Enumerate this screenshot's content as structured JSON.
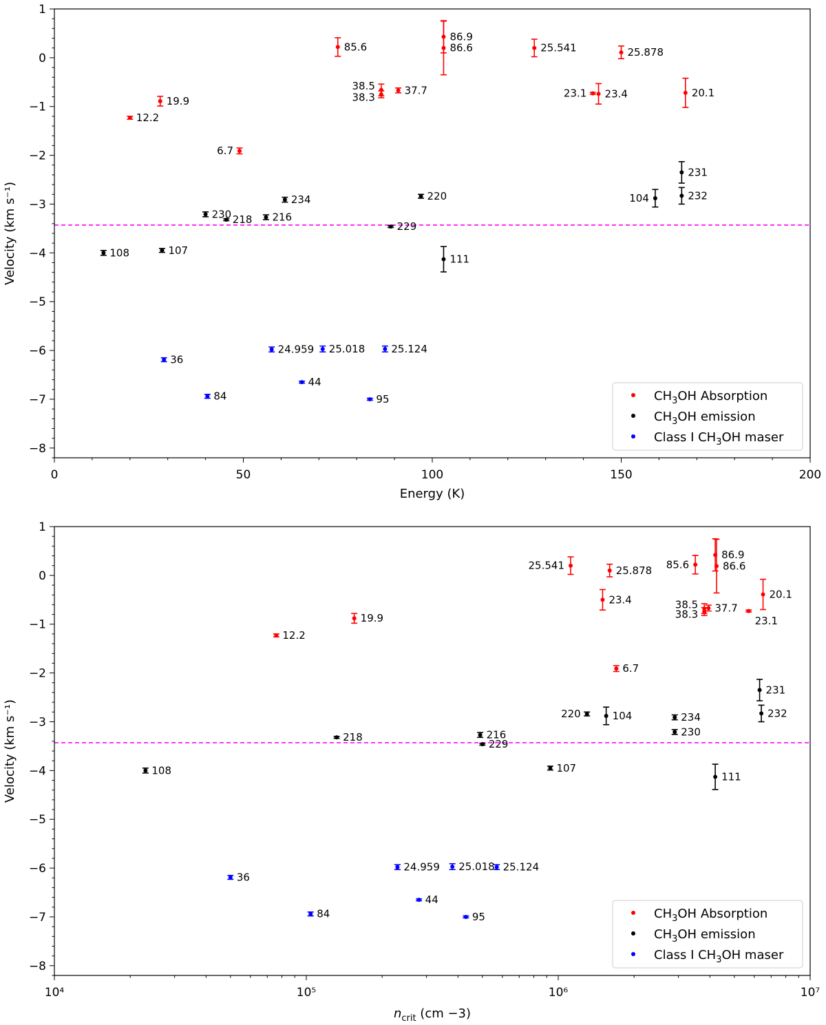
{
  "chart_data": [
    {
      "type": "scatter",
      "xscale": "linear",
      "xlabel": "Energy (K)",
      "ylabel": "Velocity (km s⁻¹)",
      "xlim": [
        0,
        200
      ],
      "ylim": [
        -8.2,
        1
      ],
      "xticks": [
        0,
        50,
        100,
        150,
        200
      ],
      "xtick_labels": [
        "0",
        "50",
        "100",
        "150",
        "200"
      ],
      "yticks": [
        -8,
        -7,
        -6,
        -5,
        -4,
        -3,
        -2,
        -1,
        0,
        1
      ],
      "ytick_labels": [
        "−8",
        "−7",
        "−6",
        "−5",
        "−4",
        "−3",
        "−2",
        "−1",
        "0",
        "1"
      ],
      "reference_line": {
        "y": -3.43,
        "color": "#ff00ff",
        "style": "dashed"
      },
      "legend": {
        "position": "bottom-right",
        "entries": [
          "abs",
          "em",
          "mas"
        ]
      },
      "series": [
        {
          "key": "abs",
          "name_prefix": "CH",
          "name_sub": "3",
          "name_suffix": "OH Absorption",
          "color": "#ff0000",
          "points": [
            {
              "x": 20,
              "y": -1.23,
              "err": 0.03,
              "label": "12.2",
              "side": "right"
            },
            {
              "x": 28,
              "y": -0.89,
              "err": 0.1,
              "label": "19.9",
              "side": "right"
            },
            {
              "x": 49,
              "y": -1.91,
              "err": 0.06,
              "label": "6.7",
              "side": "left"
            },
            {
              "x": 75,
              "y": 0.22,
              "err": 0.19,
              "label": "85.6",
              "side": "right"
            },
            {
              "x": 86.5,
              "y": -0.66,
              "err": 0.12,
              "label": "38.5",
              "side": "left",
              "dy": -0.08
            },
            {
              "x": 86.5,
              "y": -0.75,
              "err": 0.07,
              "label": "38.3",
              "side": "left",
              "dy": 0.06
            },
            {
              "x": 91,
              "y": -0.67,
              "err": 0.05,
              "label": "37.7",
              "side": "right"
            },
            {
              "x": 103,
              "y": 0.43,
              "err": 0.33,
              "label": "86.9",
              "side": "right"
            },
            {
              "x": 103,
              "y": 0.2,
              "err": 0.55,
              "label": "86.6",
              "side": "right"
            },
            {
              "x": 127,
              "y": 0.2,
              "err": 0.18,
              "label": "25.541",
              "side": "right"
            },
            {
              "x": 142.5,
              "y": -0.73,
              "err": 0.02,
              "label": "23.1",
              "side": "left"
            },
            {
              "x": 144,
              "y": -0.74,
              "err": 0.21,
              "label": "23.4",
              "side": "right"
            },
            {
              "x": 150,
              "y": 0.11,
              "err": 0.13,
              "label": "25.878",
              "side": "right"
            },
            {
              "x": 167,
              "y": -0.72,
              "err": 0.3,
              "label": "20.1",
              "side": "right"
            }
          ]
        },
        {
          "key": "em",
          "name_prefix": "CH",
          "name_sub": "3",
          "name_suffix": "OH emission",
          "color": "#000000",
          "points": [
            {
              "x": 13,
              "y": -4.0,
              "err": 0.05,
              "label": "108",
              "side": "right"
            },
            {
              "x": 28.5,
              "y": -3.95,
              "err": 0.04,
              "label": "107",
              "side": "right"
            },
            {
              "x": 40,
              "y": -3.21,
              "err": 0.05,
              "label": "230",
              "side": "right"
            },
            {
              "x": 45.5,
              "y": -3.32,
              "err": 0.02,
              "label": "218",
              "side": "right"
            },
            {
              "x": 56,
              "y": -3.27,
              "err": 0.05,
              "label": "216",
              "side": "right"
            },
            {
              "x": 61,
              "y": -2.91,
              "err": 0.05,
              "label": "234",
              "side": "right"
            },
            {
              "x": 89,
              "y": -3.46,
              "err": 0.02,
              "label": "229",
              "side": "right"
            },
            {
              "x": 97,
              "y": -2.84,
              "err": 0.04,
              "label": "220",
              "side": "right"
            },
            {
              "x": 103,
              "y": -4.13,
              "err": 0.26,
              "label": "111",
              "side": "right"
            },
            {
              "x": 159,
              "y": -2.88,
              "err": 0.18,
              "label": "104",
              "side": "left"
            },
            {
              "x": 166,
              "y": -2.35,
              "err": 0.22,
              "label": "231",
              "side": "right"
            },
            {
              "x": 166,
              "y": -2.83,
              "err": 0.17,
              "label": "232",
              "side": "right"
            }
          ]
        },
        {
          "key": "mas",
          "name_prefix": "Class I CH",
          "name_sub": "3",
          "name_suffix": "OH maser",
          "color": "#0000ff",
          "points": [
            {
              "x": 29,
              "y": -6.19,
              "err": 0.04,
              "label": "36",
              "side": "right"
            },
            {
              "x": 40.5,
              "y": -6.94,
              "err": 0.04,
              "label": "84",
              "side": "right"
            },
            {
              "x": 57.5,
              "y": -5.98,
              "err": 0.05,
              "label": "24.959",
              "side": "right"
            },
            {
              "x": 65.5,
              "y": -6.65,
              "err": 0.02,
              "label": "44",
              "side": "right"
            },
            {
              "x": 71,
              "y": -5.97,
              "err": 0.06,
              "label": "25.018",
              "side": "right"
            },
            {
              "x": 83.5,
              "y": -7.0,
              "err": 0.02,
              "label": "95",
              "side": "right"
            },
            {
              "x": 87.5,
              "y": -5.97,
              "err": 0.06,
              "label": "25.124",
              "side": "right"
            }
          ]
        }
      ]
    },
    {
      "type": "scatter",
      "xscale": "log",
      "xlabel_prefix": "n",
      "xlabel_sub": "crit",
      "xlabel_suffix": " (cm −3)",
      "ylabel": "Velocity (km s⁻¹)",
      "xlim": [
        10000,
        10000000
      ],
      "ylim": [
        -8.2,
        1
      ],
      "xticks": [
        10000,
        100000,
        1000000,
        10000000
      ],
      "xtick_labels": [
        "10⁴",
        "10⁵",
        "10⁶",
        "10⁷"
      ],
      "yticks": [
        -8,
        -7,
        -6,
        -5,
        -4,
        -3,
        -2,
        -1,
        0,
        1
      ],
      "ytick_labels": [
        "−8",
        "−7",
        "−6",
        "−5",
        "−4",
        "−3",
        "−2",
        "−1",
        "0",
        "1"
      ],
      "reference_line": {
        "y": -3.43,
        "color": "#ff00ff",
        "style": "dashed"
      },
      "legend": {
        "position": "bottom-right",
        "entries": [
          "abs",
          "em",
          "mas"
        ]
      },
      "series": [
        {
          "key": "abs",
          "name_prefix": "CH",
          "name_sub": "3",
          "name_suffix": "OH Absorption",
          "color": "#ff0000",
          "points": [
            {
              "x": 76000,
              "y": -1.23,
              "err": 0.03,
              "label": "12.2",
              "side": "right"
            },
            {
              "x": 155000,
              "y": -0.88,
              "err": 0.1,
              "label": "19.9",
              "side": "right"
            },
            {
              "x": 1120000,
              "y": 0.2,
              "err": 0.18,
              "label": "25.541",
              "side": "left"
            },
            {
              "x": 1500000,
              "y": -0.5,
              "err": 0.21,
              "label": "23.4",
              "side": "right"
            },
            {
              "x": 1600000,
              "y": 0.1,
              "err": 0.13,
              "label": "25.878",
              "side": "right"
            },
            {
              "x": 1700000,
              "y": -1.91,
              "err": 0.06,
              "label": "6.7",
              "side": "right"
            },
            {
              "x": 3500000,
              "y": 0.22,
              "err": 0.19,
              "label": "85.6",
              "side": "left"
            },
            {
              "x": 3800000,
              "y": -0.68,
              "err": 0.1,
              "label": "38.5",
              "side": "left",
              "dy": -0.08
            },
            {
              "x": 3800000,
              "y": -0.74,
              "err": 0.08,
              "label": "38.3",
              "side": "left",
              "dy": 0.06
            },
            {
              "x": 3950000,
              "y": -0.67,
              "err": 0.06,
              "label": "37.7",
              "side": "right"
            },
            {
              "x": 4200000,
              "y": 0.42,
              "err": 0.33,
              "label": "86.9",
              "side": "right"
            },
            {
              "x": 4250000,
              "y": 0.19,
              "err": 0.55,
              "label": "86.6",
              "side": "right"
            },
            {
              "x": 5700000,
              "y": -0.73,
              "err": 0.02,
              "label": "23.1",
              "side": "right",
              "dy": 0.2
            },
            {
              "x": 6500000,
              "y": -0.39,
              "err": 0.31,
              "label": "20.1",
              "side": "right"
            }
          ]
        },
        {
          "key": "em",
          "name_prefix": "CH",
          "name_sub": "3",
          "name_suffix": "OH emission",
          "color": "#000000",
          "points": [
            {
              "x": 23000,
              "y": -4.0,
              "err": 0.05,
              "label": "108",
              "side": "right"
            },
            {
              "x": 132000,
              "y": -3.32,
              "err": 0.02,
              "label": "218",
              "side": "right"
            },
            {
              "x": 490000,
              "y": -3.27,
              "err": 0.05,
              "label": "216",
              "side": "right"
            },
            {
              "x": 500000,
              "y": -3.46,
              "err": 0.02,
              "label": "229",
              "side": "right"
            },
            {
              "x": 930000,
              "y": -3.95,
              "err": 0.04,
              "label": "107",
              "side": "right"
            },
            {
              "x": 1300000,
              "y": -2.84,
              "err": 0.04,
              "label": "220",
              "side": "left"
            },
            {
              "x": 1550000,
              "y": -2.88,
              "err": 0.18,
              "label": "104",
              "side": "right"
            },
            {
              "x": 2900000,
              "y": -2.91,
              "err": 0.05,
              "label": "234",
              "side": "right"
            },
            {
              "x": 2900000,
              "y": -3.21,
              "err": 0.05,
              "label": "230",
              "side": "right"
            },
            {
              "x": 4200000,
              "y": -4.13,
              "err": 0.26,
              "label": "111",
              "side": "right"
            },
            {
              "x": 6300000,
              "y": -2.35,
              "err": 0.22,
              "label": "231",
              "side": "right"
            },
            {
              "x": 6400000,
              "y": -2.83,
              "err": 0.17,
              "label": "232",
              "side": "right"
            }
          ]
        },
        {
          "key": "mas",
          "name_prefix": "Class I CH",
          "name_sub": "3",
          "name_suffix": "OH maser",
          "color": "#0000ff",
          "points": [
            {
              "x": 50000,
              "y": -6.19,
              "err": 0.04,
              "label": "36",
              "side": "right"
            },
            {
              "x": 104000,
              "y": -6.94,
              "err": 0.04,
              "label": "84",
              "side": "right"
            },
            {
              "x": 230000,
              "y": -5.98,
              "err": 0.05,
              "label": "24.959",
              "side": "right"
            },
            {
              "x": 280000,
              "y": -6.65,
              "err": 0.02,
              "label": "44",
              "side": "right"
            },
            {
              "x": 380000,
              "y": -5.97,
              "err": 0.06,
              "label": "25.018",
              "side": "right"
            },
            {
              "x": 430000,
              "y": -7.0,
              "err": 0.02,
              "label": "95",
              "side": "right"
            },
            {
              "x": 570000,
              "y": -5.98,
              "err": 0.05,
              "label": "25.124",
              "side": "right"
            }
          ]
        }
      ]
    }
  ]
}
